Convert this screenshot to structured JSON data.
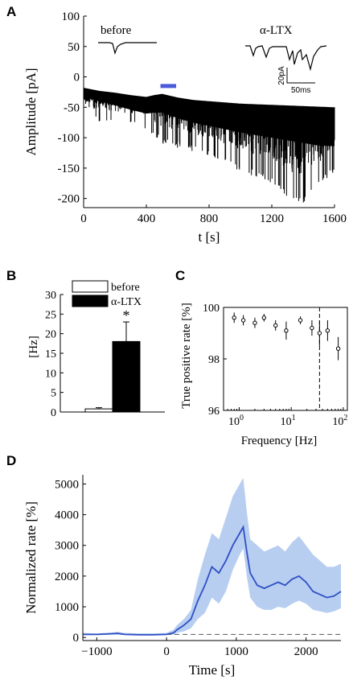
{
  "panel_labels": {
    "a": "A",
    "b": "B",
    "c": "C",
    "d": "D"
  },
  "chart_data": [
    {
      "panel": "A",
      "type": "line",
      "xlabel": "t [s]",
      "ylabel": "Amplitude [pA]",
      "xlim": [
        0,
        1600
      ],
      "ylim": [
        -215,
        100
      ],
      "xticks": [
        0,
        400,
        800,
        1200,
        1600
      ],
      "yticks": [
        100,
        50,
        0,
        -50,
        -100,
        -150,
        -200
      ],
      "grid": false,
      "baseline": {
        "x": [
          0,
          100,
          200,
          300,
          400,
          450,
          500,
          600,
          700,
          800,
          900,
          1000,
          1100,
          1200,
          1300,
          1400,
          1500,
          1600
        ],
        "y": [
          -20,
          -25,
          -28,
          -32,
          -35,
          -32,
          -30,
          -36,
          -40,
          -42,
          -44,
          -46,
          -47,
          -48,
          -49,
          -50,
          -51,
          -52
        ]
      },
      "event_amplitude_envelope": {
        "x": [
          0,
          400,
          500,
          800,
          1000,
          1200,
          1300,
          1400,
          1500,
          1600
        ],
        "y": [
          -60,
          -75,
          -100,
          -120,
          -145,
          -165,
          -190,
          -200,
          -170,
          -145
        ]
      },
      "application_bar": {
        "x": [
          490,
          590
        ],
        "y": -15,
        "color": "#4a5bdc"
      },
      "insets": [
        {
          "label": "before"
        },
        {
          "label": "α-LTX"
        }
      ],
      "scalebar": {
        "amplitude": "20pA",
        "time": "50ms"
      }
    },
    {
      "panel": "B",
      "type": "bar",
      "categories": [
        "before",
        "α-LTX"
      ],
      "values": [
        0.8,
        18
      ],
      "errors": [
        0.3,
        5
      ],
      "colors": [
        "#ffffff",
        "#000000"
      ],
      "ylabel": "[Hz]",
      "ylim": [
        0,
        30
      ],
      "yticks": [
        0,
        5,
        10,
        15,
        20,
        25,
        30
      ],
      "significance": "*",
      "legend": [
        "before",
        "α-LTX"
      ],
      "legend_position": "top"
    },
    {
      "panel": "C",
      "type": "scatter",
      "xscale": "log",
      "xlabel": "Frequency [Hz]",
      "ylabel": "True positive rate [%]",
      "xlim": [
        0.5,
        120
      ],
      "ylim": [
        96,
        100
      ],
      "yticks": [
        96,
        98,
        100
      ],
      "xticks": [
        "10^0",
        "10^1",
        "10^2"
      ],
      "x": [
        0.8,
        1.2,
        2,
        3,
        5,
        8,
        15,
        25,
        35,
        50,
        80
      ],
      "y": [
        99.6,
        99.5,
        99.4,
        99.6,
        99.3,
        99.1,
        99.5,
        99.2,
        99.0,
        99.1,
        98.4
      ],
      "yerr": [
        0.2,
        0.2,
        0.2,
        0.15,
        0.2,
        0.35,
        0.15,
        0.3,
        0.5,
        0.4,
        0.45
      ],
      "vline_x": 35
    },
    {
      "panel": "D",
      "type": "area",
      "xlabel": "Time [s]",
      "ylabel": "Normalized rate [%]",
      "xlim": [
        -1200,
        2500
      ],
      "ylim": [
        -100,
        5300
      ],
      "xticks": [
        -1000,
        0,
        1000,
        2000
      ],
      "yticks": [
        0,
        1000,
        2000,
        3000,
        4000,
        5000
      ],
      "series_color": "#2f4fc4",
      "band_color": "#aac6ef",
      "reference_level": 100,
      "x": [
        -1200,
        -1000,
        -800,
        -700,
        -600,
        -400,
        -200,
        0,
        100,
        150,
        250,
        350,
        450,
        550,
        650,
        750,
        850,
        950,
        1050,
        1100,
        1150,
        1200,
        1300,
        1400,
        1500,
        1600,
        1700,
        1800,
        1900,
        2000,
        2100,
        2200,
        2300,
        2400,
        2500
      ],
      "y": [
        100,
        100,
        120,
        130,
        100,
        90,
        90,
        100,
        150,
        250,
        400,
        600,
        1200,
        1700,
        2300,
        2100,
        2500,
        3000,
        3400,
        3600,
        2800,
        2100,
        1700,
        1600,
        1700,
        1800,
        1700,
        1900,
        2000,
        1800,
        1500,
        1400,
        1300,
        1350,
        1500
      ],
      "lower": [
        80,
        80,
        90,
        100,
        80,
        70,
        70,
        80,
        100,
        150,
        200,
        300,
        600,
        800,
        1300,
        1100,
        1500,
        2200,
        2700,
        2900,
        2000,
        1300,
        1000,
        900,
        900,
        1000,
        950,
        1100,
        1200,
        1100,
        900,
        850,
        800,
        850,
        950
      ],
      "upper": [
        150,
        130,
        160,
        180,
        150,
        130,
        130,
        150,
        250,
        400,
        600,
        900,
        1900,
        2700,
        3400,
        3200,
        3900,
        4600,
        5000,
        5200,
        4100,
        3200,
        3000,
        2800,
        2900,
        3000,
        2800,
        3100,
        3300,
        3000,
        2700,
        2500,
        2300,
        2300,
        2400
      ]
    }
  ]
}
